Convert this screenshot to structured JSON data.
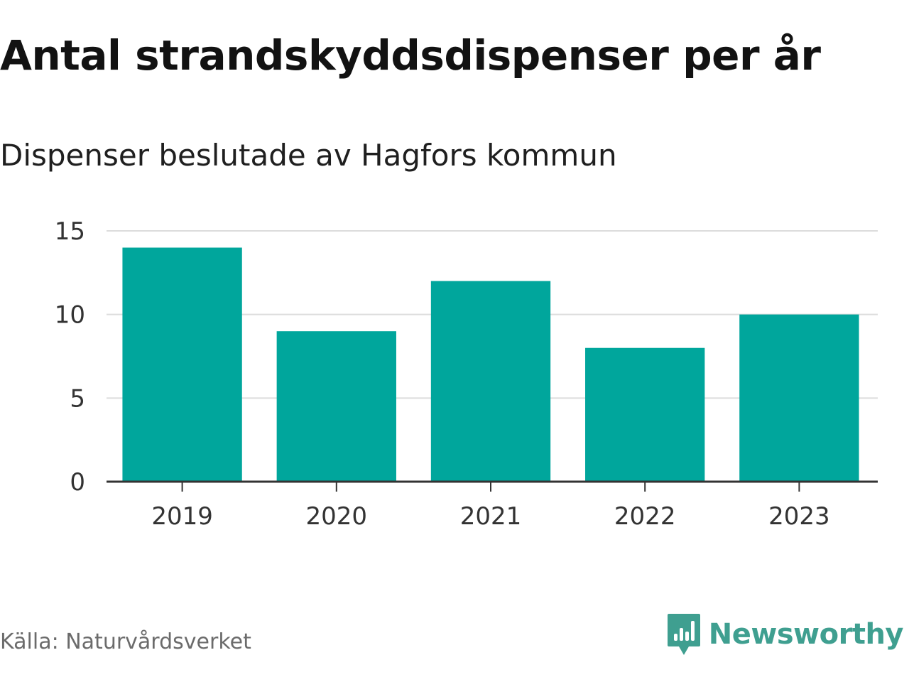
{
  "header": {
    "title": "Antal strandskyddsdispenser per år",
    "subtitle": "Dispenser beslutade av Hagfors kommun"
  },
  "footer": {
    "source": "Källa: Naturvårdsverket",
    "brand": "Newsworthy",
    "brand_logo_icon": "chat-bubble-bar-chart-icon",
    "brand_color": "#3f9f90"
  },
  "chart_data": {
    "type": "bar",
    "title": "Antal strandskyddsdispenser per år",
    "subtitle": "Dispenser beslutade av Hagfors kommun",
    "categories": [
      "2019",
      "2020",
      "2021",
      "2022",
      "2023"
    ],
    "values": [
      14,
      9,
      12,
      8,
      10
    ],
    "xlabel": "",
    "ylabel": "",
    "ylim": [
      0,
      15
    ],
    "yticks": [
      "0",
      "5",
      "10",
      "15"
    ],
    "grid": true,
    "legend": "none",
    "bar_color": "#00a69c"
  }
}
